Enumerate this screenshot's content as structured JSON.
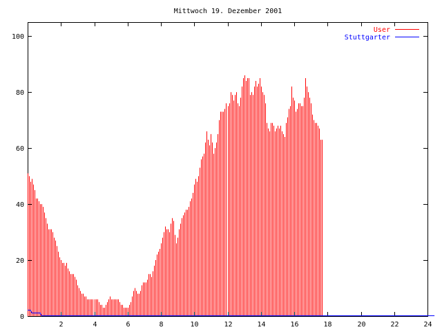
{
  "chart_data": {
    "type": "bar",
    "title": "Mittwoch 19. Dezember 2001",
    "xlabel": "",
    "ylabel": "",
    "xlim": [
      0,
      24
    ],
    "ylim": [
      0,
      105
    ],
    "x_ticks": [
      "2",
      "4",
      "6",
      "8",
      "10",
      "12",
      "14",
      "16",
      "18",
      "20",
      "22",
      "24"
    ],
    "y_ticks": [
      "0",
      "20",
      "40",
      "60",
      "80",
      "100"
    ],
    "legend_position": "top-right",
    "grid": false,
    "series": [
      {
        "name": "User",
        "style": "impulses",
        "color": "#ff0000",
        "interval_minutes": 5,
        "values": [
          51,
          50,
          48,
          49,
          47,
          45,
          42,
          42,
          41,
          40,
          40,
          39,
          37,
          35,
          33,
          31,
          31,
          31,
          30,
          28,
          27,
          25,
          23,
          21,
          20,
          19,
          19,
          18,
          19,
          17,
          16,
          15,
          15,
          15,
          14,
          13,
          11,
          10,
          9,
          8,
          8,
          7,
          7,
          6,
          6,
          6,
          6,
          6,
          6,
          6,
          6,
          5,
          4,
          4,
          3,
          3,
          4,
          5,
          6,
          7,
          6,
          6,
          6,
          6,
          6,
          6,
          5,
          4,
          4,
          3,
          3,
          3,
          3,
          4,
          5,
          7,
          9,
          10,
          9,
          8,
          8,
          9,
          11,
          12,
          12,
          12,
          13,
          15,
          15,
          14,
          16,
          18,
          20,
          22,
          23,
          24,
          26,
          28,
          30,
          32,
          31,
          31,
          30,
          33,
          35,
          34,
          29,
          26,
          28,
          31,
          33,
          35,
          36,
          37,
          38,
          38,
          39,
          41,
          42,
          44,
          47,
          49,
          48,
          50,
          53,
          56,
          57,
          58,
          62,
          66,
          63,
          61,
          65,
          62,
          58,
          60,
          62,
          65,
          70,
          73,
          73,
          73,
          74,
          76,
          75,
          76,
          80,
          79,
          77,
          79,
          80,
          76,
          75,
          78,
          82,
          85,
          86,
          84,
          85,
          85,
          79,
          80,
          79,
          82,
          84,
          82,
          83,
          85,
          82,
          80,
          79,
          76,
          69,
          67,
          66,
          69,
          69,
          68,
          66,
          67,
          68,
          67,
          68,
          66,
          65,
          64,
          69,
          71,
          74,
          75,
          82,
          78,
          77,
          73,
          74,
          76,
          76,
          75,
          75,
          78,
          85,
          82,
          80,
          78,
          76,
          72,
          70,
          69,
          69,
          68,
          67,
          63,
          63
        ]
      },
      {
        "name": "Stuttgarter",
        "style": "line",
        "color": "#0000ff",
        "interval_minutes": 5,
        "values": [
          2,
          2,
          2,
          1,
          1,
          1,
          1,
          1,
          1,
          1,
          0,
          0,
          0,
          0,
          0,
          0,
          0,
          0,
          0,
          0,
          0,
          0,
          0,
          0,
          0,
          0,
          0,
          0,
          0,
          0,
          0,
          0,
          0,
          0,
          0,
          0,
          0,
          0,
          0,
          0,
          0,
          0,
          0,
          0,
          0,
          0,
          0,
          0,
          0,
          0,
          0,
          0,
          0,
          0,
          0,
          0,
          0,
          0,
          0,
          0,
          0,
          0,
          0,
          0,
          0,
          0,
          0,
          0,
          0,
          0,
          0,
          0,
          0,
          0,
          0,
          0,
          0,
          0,
          0,
          0,
          0,
          0,
          0,
          0,
          0,
          0,
          0,
          0,
          0,
          0,
          0,
          0,
          0,
          0,
          0,
          0,
          0,
          0,
          0,
          0,
          0,
          0,
          0,
          0,
          0,
          0,
          0,
          0,
          0,
          0,
          0,
          0,
          0,
          0,
          0,
          0,
          0,
          0,
          0,
          0,
          0,
          0,
          0,
          0,
          0,
          0,
          0,
          0,
          0,
          0,
          0,
          0,
          0,
          0,
          0,
          0,
          0,
          0,
          0,
          0,
          0,
          0,
          0,
          0,
          0,
          0,
          0,
          0,
          0,
          0,
          0,
          0,
          0,
          0,
          0,
          0,
          0,
          0,
          0,
          0,
          0,
          0,
          0,
          0,
          0,
          0,
          0,
          0,
          0,
          0,
          0,
          0,
          0,
          0,
          0,
          0,
          0,
          0,
          0,
          0,
          0,
          0,
          0,
          0,
          0,
          0,
          0,
          0,
          0,
          0,
          0,
          0,
          0,
          0,
          0,
          0,
          0,
          0,
          0,
          0,
          0,
          0,
          0,
          0,
          0,
          0,
          0,
          0,
          0,
          0,
          0,
          0,
          0,
          0,
          0,
          0,
          0,
          0,
          0,
          0,
          0,
          0,
          0,
          0,
          0,
          0,
          0,
          0,
          0,
          0,
          0,
          0,
          0,
          0,
          0,
          0,
          0,
          0,
          0,
          0,
          0,
          0,
          0,
          0,
          0,
          0,
          0,
          0,
          0,
          0,
          0,
          0,
          0,
          0,
          0,
          0,
          0,
          0,
          0,
          0,
          0,
          0,
          0,
          0,
          0,
          0,
          0,
          0,
          0,
          0,
          0,
          0,
          0,
          0,
          0,
          0,
          0,
          0,
          0,
          0,
          0,
          0,
          0,
          0,
          0,
          0,
          0,
          0,
          0,
          0,
          0,
          0,
          0,
          0
        ]
      }
    ]
  }
}
